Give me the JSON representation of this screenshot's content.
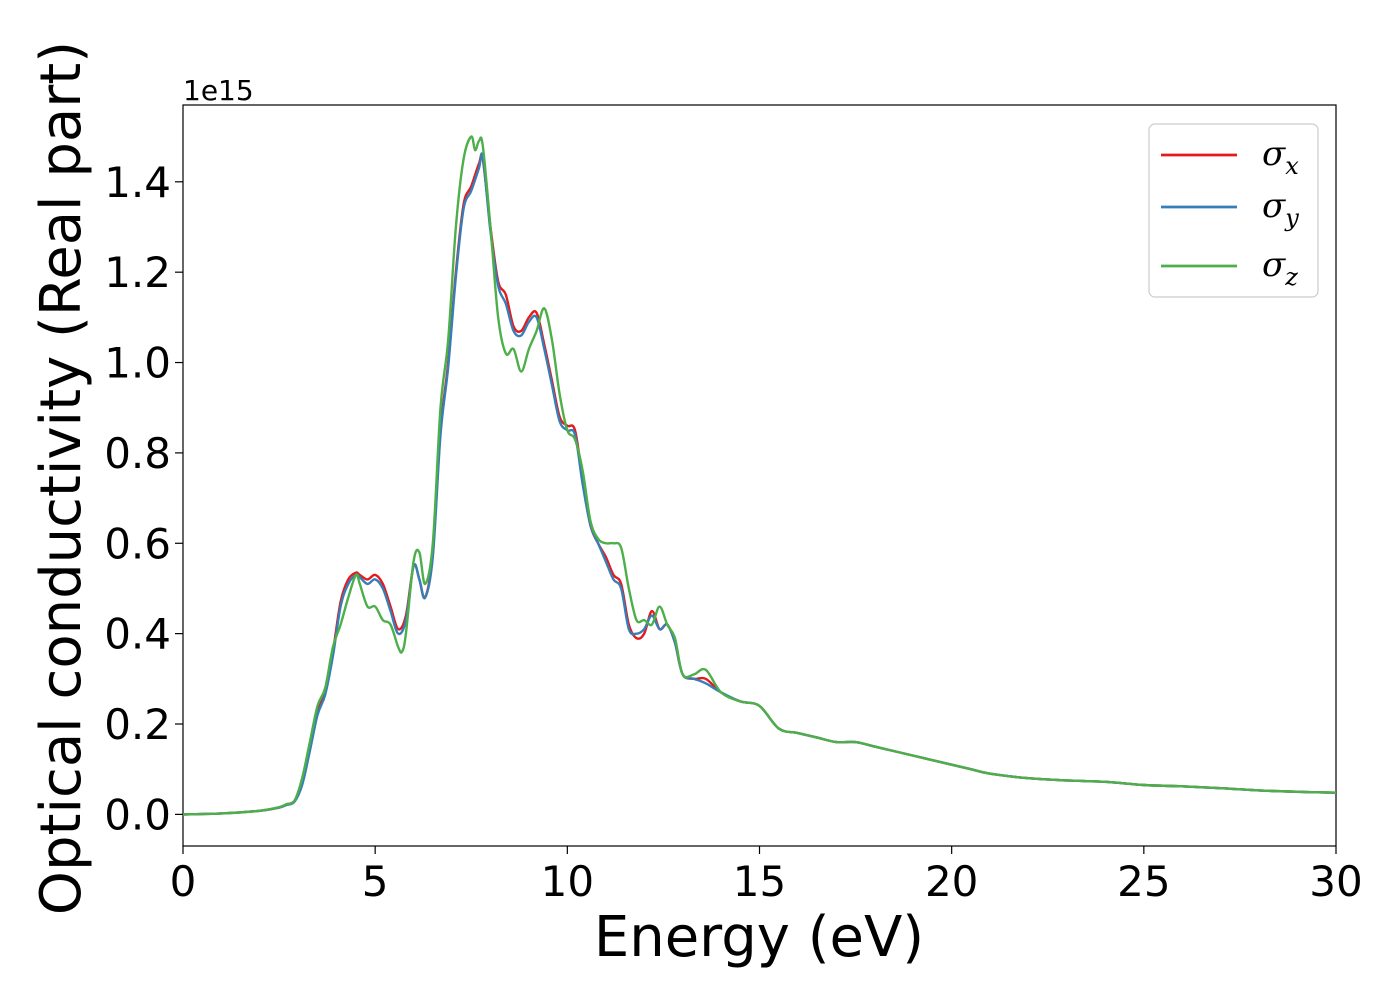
{
  "chart_data": {
    "type": "line",
    "title": "",
    "xlabel": "Energy (eV)",
    "ylabel": "Optical conductivity (Real part)",
    "y_offset_text": "1e15",
    "y_scale": 1000000000000000.0,
    "xlim": [
      0,
      30
    ],
    "ylim": [
      -0.07,
      1.57
    ],
    "xticks": [
      0,
      5,
      10,
      15,
      20,
      25,
      30
    ],
    "xtick_labels": [
      "0",
      "5",
      "10",
      "15",
      "20",
      "25",
      "30"
    ],
    "yticks": [
      0.0,
      0.2,
      0.4,
      0.6,
      0.8,
      1.0,
      1.2,
      1.4
    ],
    "ytick_labels": [
      "0.0",
      "0.2",
      "0.4",
      "0.6",
      "0.8",
      "1.0",
      "1.2",
      "1.4"
    ],
    "grid": false,
    "legend_position": "top-right",
    "series": [
      {
        "name": "σx",
        "symbol": "σ",
        "subscript": "x",
        "color": "#e41a1c",
        "x": [
          0,
          1,
          2,
          2.5,
          2.7,
          2.9,
          3.1,
          3.3,
          3.5,
          3.7,
          3.9,
          4.1,
          4.3,
          4.5,
          4.6,
          4.8,
          5.0,
          5.2,
          5.4,
          5.6,
          5.8,
          6.0,
          6.15,
          6.3,
          6.5,
          6.7,
          6.9,
          7.1,
          7.3,
          7.5,
          7.7,
          7.8,
          8.0,
          8.2,
          8.4,
          8.6,
          8.8,
          9.0,
          9.2,
          9.4,
          9.6,
          9.8,
          10.0,
          10.2,
          10.4,
          10.6,
          10.8,
          11.0,
          11.2,
          11.4,
          11.6,
          11.8,
          12.0,
          12.2,
          12.4,
          12.6,
          12.8,
          13.0,
          13.3,
          13.6,
          14.0,
          14.5,
          15.0,
          15.5,
          16.0,
          16.5,
          17.0,
          17.5,
          18.0,
          18.5,
          19.0,
          19.5,
          20.0,
          20.5,
          21.0,
          22.0,
          23.0,
          24.0,
          25.0,
          26.0,
          27.0,
          28.0,
          29.0,
          30.0
        ],
        "values": [
          0.0,
          0.002,
          0.008,
          0.015,
          0.022,
          0.03,
          0.07,
          0.15,
          0.23,
          0.27,
          0.36,
          0.47,
          0.52,
          0.535,
          0.53,
          0.52,
          0.53,
          0.51,
          0.46,
          0.41,
          0.44,
          0.55,
          0.52,
          0.48,
          0.58,
          0.85,
          1.0,
          1.2,
          1.35,
          1.39,
          1.44,
          1.45,
          1.3,
          1.18,
          1.15,
          1.08,
          1.07,
          1.1,
          1.11,
          1.04,
          0.96,
          0.88,
          0.86,
          0.85,
          0.74,
          0.64,
          0.6,
          0.57,
          0.53,
          0.51,
          0.42,
          0.39,
          0.4,
          0.45,
          0.41,
          0.42,
          0.38,
          0.31,
          0.3,
          0.3,
          0.27,
          0.25,
          0.24,
          0.19,
          0.18,
          0.17,
          0.16,
          0.16,
          0.15,
          0.14,
          0.13,
          0.12,
          0.11,
          0.1,
          0.09,
          0.08,
          0.075,
          0.072,
          0.065,
          0.062,
          0.058,
          0.053,
          0.05,
          0.048
        ]
      },
      {
        "name": "σy",
        "symbol": "σ",
        "subscript": "y",
        "color": "#377eb8",
        "x": [
          0,
          1,
          2,
          2.5,
          2.7,
          2.9,
          3.1,
          3.3,
          3.5,
          3.7,
          3.9,
          4.1,
          4.3,
          4.5,
          4.6,
          4.8,
          5.0,
          5.2,
          5.4,
          5.6,
          5.8,
          6.0,
          6.15,
          6.3,
          6.5,
          6.7,
          6.9,
          7.1,
          7.3,
          7.5,
          7.7,
          7.8,
          8.0,
          8.2,
          8.4,
          8.6,
          8.8,
          9.0,
          9.2,
          9.4,
          9.6,
          9.8,
          10.0,
          10.2,
          10.4,
          10.6,
          10.8,
          11.0,
          11.2,
          11.4,
          11.6,
          11.8,
          12.0,
          12.2,
          12.4,
          12.6,
          12.8,
          13.0,
          13.3,
          13.6,
          14.0,
          14.5,
          15.0,
          15.5,
          16.0,
          16.5,
          17.0,
          17.5,
          18.0,
          18.5,
          19.0,
          19.5,
          20.0,
          20.5,
          21.0,
          22.0,
          23.0,
          24.0,
          25.0,
          26.0,
          27.0,
          28.0,
          29.0,
          30.0
        ],
        "values": [
          0.0,
          0.002,
          0.008,
          0.015,
          0.021,
          0.028,
          0.065,
          0.14,
          0.22,
          0.265,
          0.35,
          0.46,
          0.51,
          0.53,
          0.525,
          0.51,
          0.52,
          0.5,
          0.45,
          0.4,
          0.43,
          0.55,
          0.52,
          0.48,
          0.57,
          0.84,
          0.99,
          1.19,
          1.34,
          1.38,
          1.43,
          1.455,
          1.29,
          1.17,
          1.13,
          1.07,
          1.06,
          1.09,
          1.1,
          1.03,
          0.95,
          0.87,
          0.85,
          0.84,
          0.73,
          0.64,
          0.6,
          0.56,
          0.52,
          0.5,
          0.41,
          0.4,
          0.41,
          0.44,
          0.41,
          0.42,
          0.38,
          0.31,
          0.3,
          0.29,
          0.27,
          0.25,
          0.24,
          0.19,
          0.18,
          0.17,
          0.16,
          0.16,
          0.15,
          0.14,
          0.13,
          0.12,
          0.11,
          0.1,
          0.09,
          0.08,
          0.075,
          0.072,
          0.065,
          0.062,
          0.058,
          0.053,
          0.05,
          0.048
        ]
      },
      {
        "name": "σz",
        "symbol": "σ",
        "subscript": "z",
        "color": "#4daf4a",
        "x": [
          0,
          1,
          2,
          2.5,
          2.7,
          2.9,
          3.1,
          3.3,
          3.5,
          3.7,
          3.9,
          4.1,
          4.3,
          4.5,
          4.6,
          4.8,
          5.0,
          5.2,
          5.4,
          5.6,
          5.7,
          5.8,
          6.0,
          6.15,
          6.3,
          6.5,
          6.7,
          6.9,
          7.1,
          7.3,
          7.5,
          7.6,
          7.7,
          7.8,
          8.0,
          8.2,
          8.4,
          8.6,
          8.8,
          9.0,
          9.2,
          9.4,
          9.6,
          9.8,
          10.0,
          10.2,
          10.4,
          10.6,
          10.8,
          11.0,
          11.2,
          11.4,
          11.6,
          11.8,
          12.0,
          12.2,
          12.4,
          12.6,
          12.8,
          13.0,
          13.3,
          13.6,
          14.0,
          14.5,
          15.0,
          15.5,
          16.0,
          16.5,
          17.0,
          17.5,
          18.0,
          18.5,
          19.0,
          19.5,
          20.0,
          20.5,
          21.0,
          22.0,
          23.0,
          24.0,
          25.0,
          26.0,
          27.0,
          28.0,
          29.0,
          30.0
        ],
        "values": [
          0.0,
          0.002,
          0.008,
          0.016,
          0.023,
          0.03,
          0.08,
          0.16,
          0.24,
          0.28,
          0.37,
          0.42,
          0.48,
          0.53,
          0.51,
          0.46,
          0.46,
          0.43,
          0.42,
          0.37,
          0.36,
          0.4,
          0.56,
          0.58,
          0.51,
          0.6,
          0.9,
          1.05,
          1.3,
          1.45,
          1.5,
          1.47,
          1.49,
          1.48,
          1.3,
          1.1,
          1.02,
          1.03,
          0.98,
          1.03,
          1.07,
          1.12,
          1.05,
          0.93,
          0.85,
          0.83,
          0.76,
          0.65,
          0.61,
          0.6,
          0.6,
          0.59,
          0.5,
          0.43,
          0.43,
          0.42,
          0.46,
          0.42,
          0.39,
          0.31,
          0.31,
          0.32,
          0.27,
          0.25,
          0.24,
          0.19,
          0.18,
          0.17,
          0.16,
          0.16,
          0.15,
          0.14,
          0.13,
          0.12,
          0.11,
          0.1,
          0.09,
          0.08,
          0.075,
          0.072,
          0.065,
          0.062,
          0.058,
          0.053,
          0.05,
          0.048
        ]
      }
    ]
  }
}
